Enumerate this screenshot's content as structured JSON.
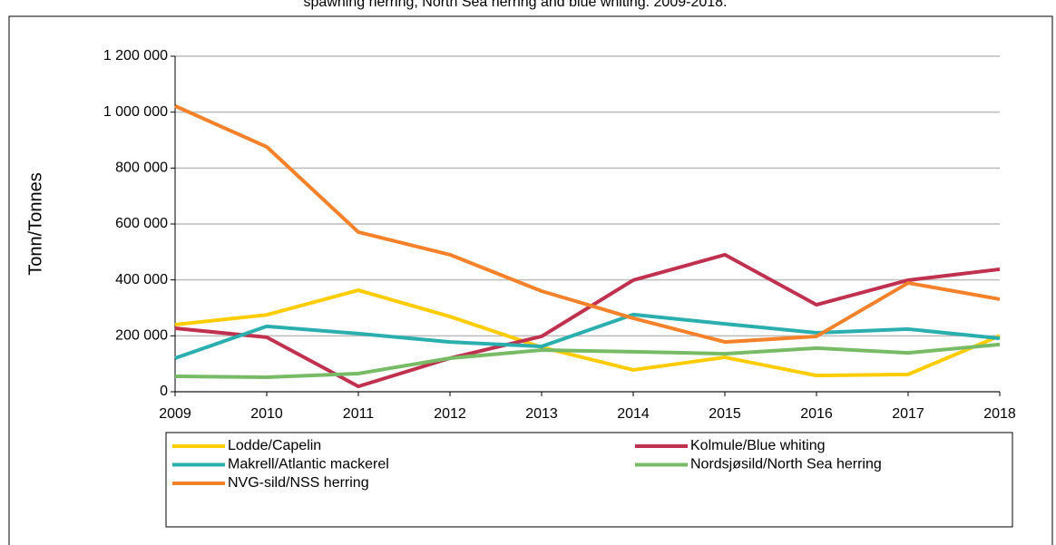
{
  "chart_data": {
    "type": "line",
    "title": "spawning herring, North Sea herring and blue whiting. 2009-2018.",
    "y_label": "Tonn/Tonnes",
    "categories": [
      "2009",
      "2010",
      "2011",
      "2012",
      "2013",
      "2014",
      "2015",
      "2016",
      "2017",
      "2018"
    ],
    "series": [
      {
        "name": "Lodde/Capelin",
        "color": "#ffcc00",
        "values": [
          240000,
          275000,
          363000,
          269000,
          159000,
          78000,
          123000,
          58000,
          62000,
          200000
        ]
      },
      {
        "name": "Kolmule/Blue whiting",
        "color": "#c0304f",
        "values": [
          227000,
          195000,
          19000,
          120000,
          198000,
          399000,
          490000,
          311000,
          399000,
          438000
        ]
      },
      {
        "name": "Makrell/Atlantic mackerel",
        "color": "#2aaeae",
        "values": [
          120000,
          234000,
          208000,
          178000,
          162000,
          276000,
          243000,
          211000,
          224000,
          191000
        ]
      },
      {
        "name": "Nordsjøsild/North Sea herring",
        "color": "#77bb66",
        "values": [
          55000,
          52000,
          65000,
          120000,
          149000,
          143000,
          136000,
          156000,
          139000,
          169000
        ]
      },
      {
        "name": "NVG-sild/NSS herring",
        "color": "#f5822a",
        "values": [
          1022000,
          876000,
          571000,
          490000,
          360000,
          263000,
          178000,
          198000,
          389000,
          331000
        ]
      }
    ],
    "ylim": [
      0,
      1200000
    ],
    "yticks": [
      0,
      {
        "value": 200000,
        "label": "200 000"
      },
      {
        "value": 400000,
        "label": "400 000"
      },
      {
        "value": 600000,
        "label": "600 000"
      },
      {
        "value": 800000,
        "label": "800 000"
      },
      {
        "value": 1000000,
        "label": "1 000 000"
      },
      {
        "value": 1200000,
        "label": "1 200 000"
      }
    ],
    "grid": true
  }
}
